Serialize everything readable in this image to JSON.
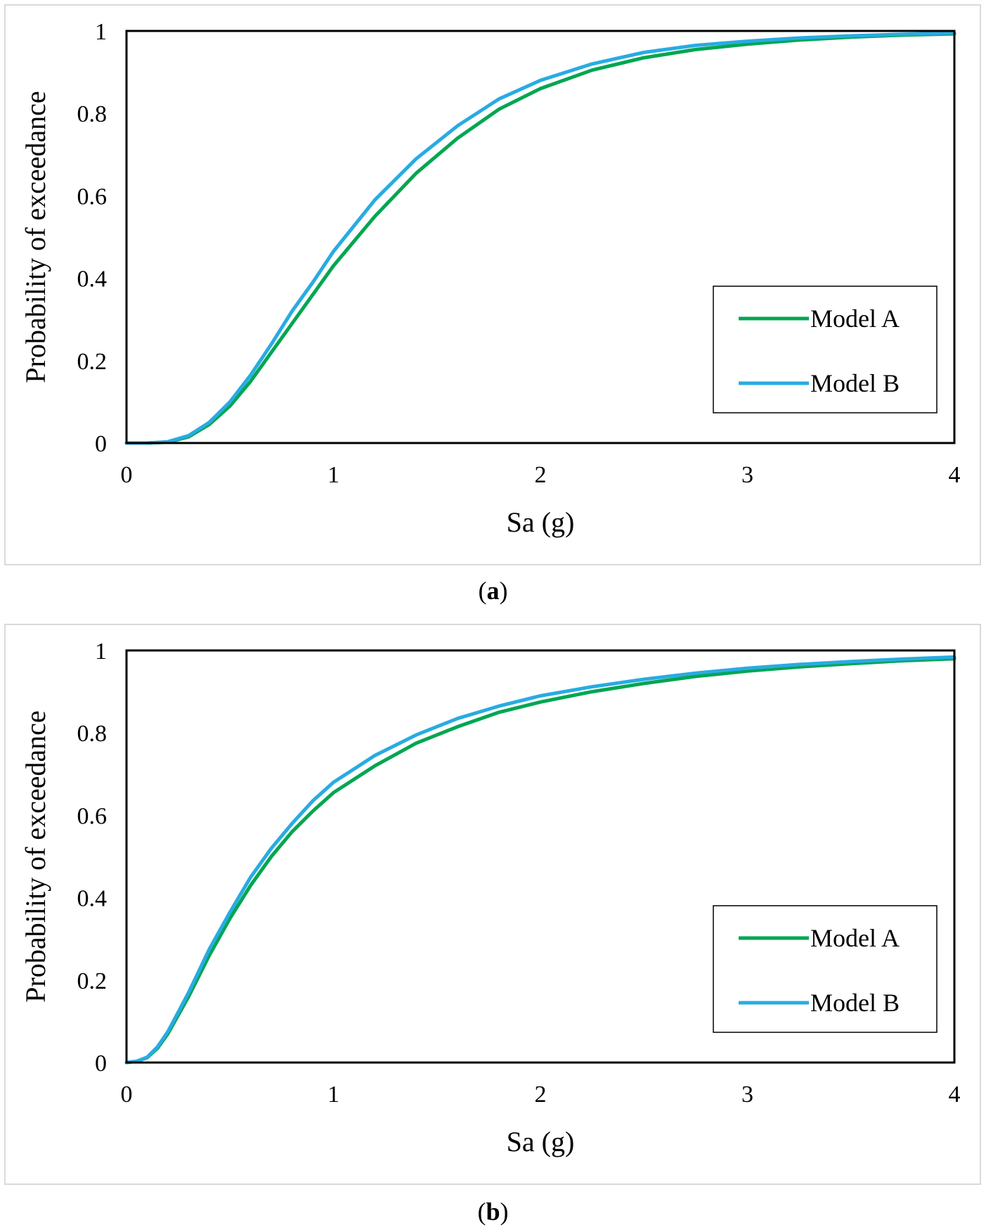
{
  "chart_data": [
    {
      "type": "line",
      "panel": "a",
      "caption": "a",
      "xlabel": "Sa (g)",
      "ylabel": "Probability of exceedance",
      "xlim": [
        0,
        4
      ],
      "ylim": [
        0,
        1
      ],
      "xticks": [
        "0",
        "1",
        "2",
        "3",
        "4"
      ],
      "yticks": [
        "0",
        "0.2",
        "0.4",
        "0.6",
        "0.8",
        "1"
      ],
      "legend_position": "lower-right",
      "series": [
        {
          "name": "Model A",
          "color": "#00a651",
          "x": [
            0,
            0.1,
            0.2,
            0.3,
            0.4,
            0.5,
            0.6,
            0.7,
            0.8,
            0.9,
            1.0,
            1.2,
            1.4,
            1.6,
            1.8,
            2.0,
            2.25,
            2.5,
            2.75,
            3.0,
            3.25,
            3.5,
            3.75,
            4.0
          ],
          "y": [
            0,
            0,
            0.002,
            0.015,
            0.045,
            0.09,
            0.15,
            0.22,
            0.29,
            0.36,
            0.43,
            0.55,
            0.655,
            0.74,
            0.81,
            0.86,
            0.905,
            0.935,
            0.955,
            0.968,
            0.978,
            0.985,
            0.99,
            0.993
          ]
        },
        {
          "name": "Model B",
          "color": "#29abe2",
          "x": [
            0,
            0.1,
            0.2,
            0.3,
            0.4,
            0.5,
            0.6,
            0.7,
            0.8,
            0.9,
            1.0,
            1.2,
            1.4,
            1.6,
            1.8,
            2.0,
            2.25,
            2.5,
            2.75,
            3.0,
            3.25,
            3.5,
            3.75,
            4.0
          ],
          "y": [
            0,
            0,
            0.003,
            0.018,
            0.05,
            0.1,
            0.165,
            0.24,
            0.32,
            0.39,
            0.465,
            0.59,
            0.69,
            0.77,
            0.835,
            0.88,
            0.92,
            0.948,
            0.965,
            0.975,
            0.983,
            0.988,
            0.992,
            0.995
          ]
        }
      ]
    },
    {
      "type": "line",
      "panel": "b",
      "caption": "b",
      "xlabel": "Sa (g)",
      "ylabel": "Probability of exceedance",
      "xlim": [
        0,
        4
      ],
      "ylim": [
        0,
        1
      ],
      "xticks": [
        "0",
        "1",
        "2",
        "3",
        "4"
      ],
      "yticks": [
        "0",
        "0.2",
        "0.4",
        "0.6",
        "0.8",
        "1"
      ],
      "legend_position": "lower-right",
      "series": [
        {
          "name": "Model A",
          "color": "#00a651",
          "x": [
            0,
            0.05,
            0.1,
            0.15,
            0.2,
            0.3,
            0.4,
            0.5,
            0.6,
            0.7,
            0.8,
            0.9,
            1.0,
            1.2,
            1.4,
            1.6,
            1.8,
            2.0,
            2.25,
            2.5,
            2.75,
            3.0,
            3.25,
            3.5,
            3.75,
            4.0
          ],
          "y": [
            0,
            0.003,
            0.012,
            0.035,
            0.07,
            0.16,
            0.26,
            0.35,
            0.43,
            0.5,
            0.56,
            0.61,
            0.655,
            0.72,
            0.775,
            0.815,
            0.85,
            0.875,
            0.9,
            0.92,
            0.937,
            0.95,
            0.96,
            0.968,
            0.975,
            0.98
          ]
        },
        {
          "name": "Model B",
          "color": "#29abe2",
          "x": [
            0,
            0.05,
            0.1,
            0.15,
            0.2,
            0.3,
            0.4,
            0.5,
            0.6,
            0.7,
            0.8,
            0.9,
            1.0,
            1.2,
            1.4,
            1.6,
            1.8,
            2.0,
            2.25,
            2.5,
            2.75,
            3.0,
            3.25,
            3.5,
            3.75,
            4.0
          ],
          "y": [
            0,
            0.003,
            0.013,
            0.038,
            0.075,
            0.17,
            0.275,
            0.365,
            0.45,
            0.52,
            0.58,
            0.635,
            0.68,
            0.745,
            0.795,
            0.835,
            0.865,
            0.89,
            0.912,
            0.93,
            0.945,
            0.957,
            0.966,
            0.973,
            0.979,
            0.984
          ]
        }
      ]
    }
  ]
}
